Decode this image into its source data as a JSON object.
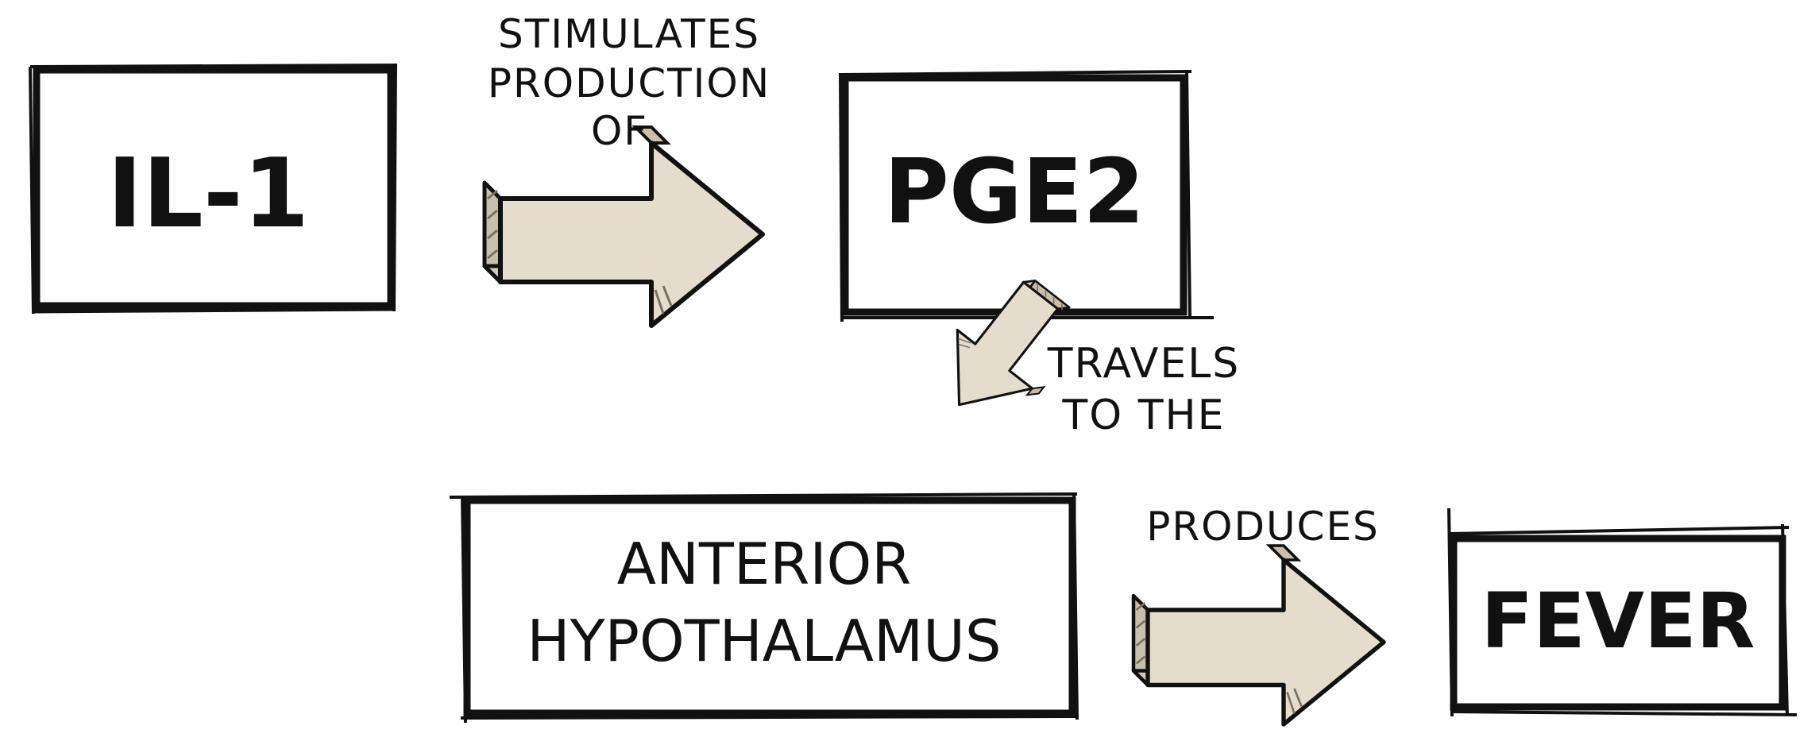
{
  "nodes": {
    "il1": {
      "label": "IL-1"
    },
    "pge2": {
      "label": "PGE2"
    },
    "hypothalamus": {
      "line1": "ANTERIOR",
      "line2": "HYPOTHALAMUS"
    },
    "fever": {
      "label": "FEVER"
    }
  },
  "edges": {
    "il1_to_pge2": {
      "line1": "STIMULATES",
      "line2": "PRODUCTION",
      "line3": "OF"
    },
    "pge2_to_hypothalamus": {
      "line1": "TRAVELS",
      "line2": "TO THE"
    },
    "hypothalamus_to_fever": {
      "label": "PRODUCES"
    }
  },
  "colors": {
    "ink": "#111111",
    "arrow_face": "#e4dccd",
    "arrow_side": "#c9bfae",
    "arrow_hatch": "#7a7166"
  }
}
